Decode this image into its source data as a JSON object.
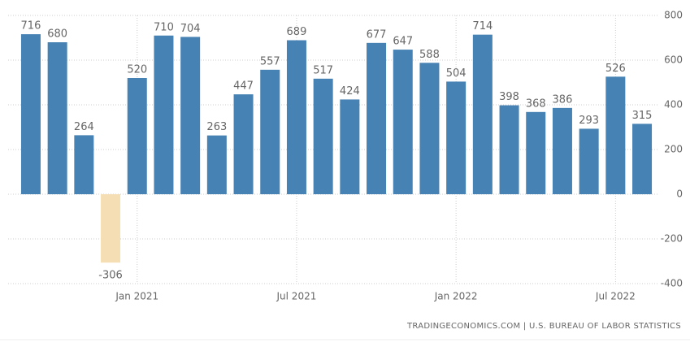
{
  "chart_data": {
    "type": "bar",
    "categories": [
      null,
      null,
      null,
      null,
      "Jan 2021",
      null,
      null,
      null,
      null,
      null,
      "Jul 2021",
      null,
      null,
      null,
      null,
      null,
      "Jan 2022",
      null,
      null,
      null,
      null,
      null,
      "Jul 2022",
      null
    ],
    "values": [
      716,
      680,
      264,
      -306,
      520,
      710,
      704,
      263,
      447,
      557,
      689,
      517,
      424,
      677,
      647,
      588,
      504,
      714,
      398,
      368,
      386,
      293,
      526,
      315
    ],
    "color": "#4682b4",
    "negative_color": "#f5deb3",
    "ylim": [
      -400,
      800
    ],
    "yticks": [
      -400,
      -200,
      0,
      200,
      400,
      600,
      800
    ],
    "grid": true,
    "source": "TRADINGECONOMICS.COM | U.S. BUREAU OF LABOR STATISTICS"
  }
}
